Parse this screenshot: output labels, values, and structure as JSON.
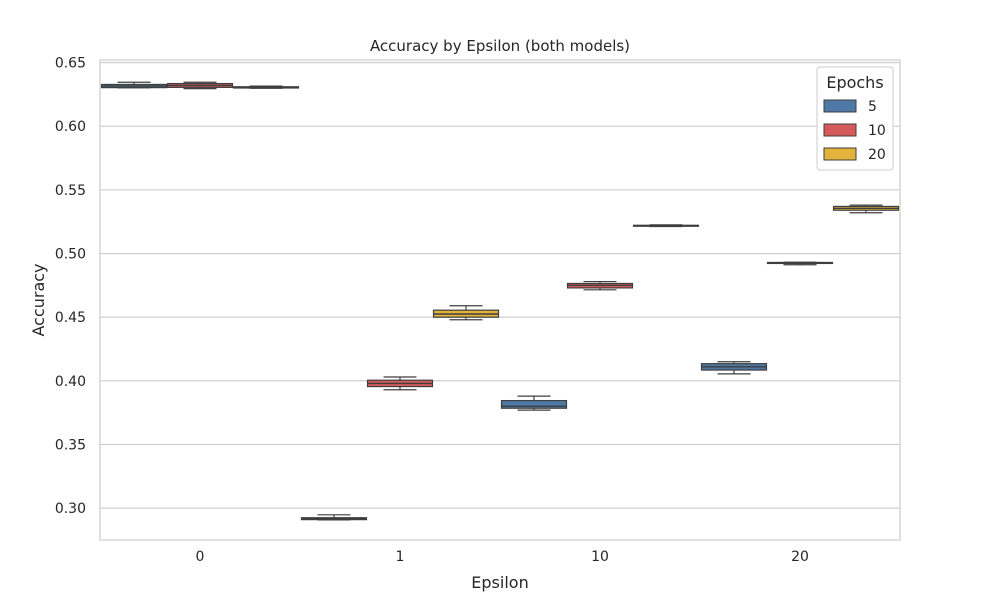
{
  "chart_data": {
    "type": "box",
    "title": "Accuracy by Epsilon (both models)",
    "xlabel": "Epsilon",
    "ylabel": "Accuracy",
    "categories": [
      "0",
      "1",
      "10",
      "20"
    ],
    "ylim": [
      0.275,
      0.652
    ],
    "yticks": [
      0.3,
      0.35,
      0.4,
      0.45,
      0.5,
      0.55,
      0.6,
      0.65
    ],
    "ytick_labels": [
      "0.30",
      "0.35",
      "0.40",
      "0.45",
      "0.50",
      "0.55",
      "0.60",
      "0.65"
    ],
    "grid": true,
    "legend": {
      "title": "Epochs",
      "placement": "top-right"
    },
    "series": [
      {
        "name": "5",
        "color": "#4e79a7",
        "boxes": [
          {
            "min": 0.6302,
            "q1": 0.6303,
            "median": 0.6315,
            "q3": 0.6328,
            "max": 0.6345
          },
          {
            "min": 0.2908,
            "q1": 0.291,
            "median": 0.2917,
            "q3": 0.2925,
            "max": 0.2948
          },
          {
            "min": 0.377,
            "q1": 0.3785,
            "median": 0.38,
            "q3": 0.3845,
            "max": 0.388
          },
          {
            "min": 0.4055,
            "q1": 0.4085,
            "median": 0.411,
            "q3": 0.4135,
            "max": 0.415
          }
        ]
      },
      {
        "name": "10",
        "color": "#d45a5a",
        "boxes": [
          {
            "min": 0.6295,
            "q1": 0.6305,
            "median": 0.632,
            "q3": 0.6335,
            "max": 0.6345
          },
          {
            "min": 0.393,
            "q1": 0.3955,
            "median": 0.398,
            "q3": 0.4005,
            "max": 0.403
          },
          {
            "min": 0.4715,
            "q1": 0.473,
            "median": 0.475,
            "q3": 0.4765,
            "max": 0.478
          },
          {
            "min": 0.4912,
            "q1": 0.4922,
            "median": 0.4925,
            "q3": 0.493,
            "max": 0.4932
          }
        ]
      },
      {
        "name": "20",
        "color": "#e3b33b",
        "boxes": [
          {
            "min": 0.6298,
            "q1": 0.63,
            "median": 0.6305,
            "q3": 0.631,
            "max": 0.6315
          },
          {
            "min": 0.448,
            "q1": 0.45,
            "median": 0.4525,
            "q3": 0.4555,
            "max": 0.459
          },
          {
            "min": 0.5212,
            "q1": 0.5215,
            "median": 0.5218,
            "q3": 0.5222,
            "max": 0.5225
          },
          {
            "min": 0.532,
            "q1": 0.534,
            "median": 0.5355,
            "q3": 0.537,
            "max": 0.538
          }
        ]
      }
    ]
  }
}
